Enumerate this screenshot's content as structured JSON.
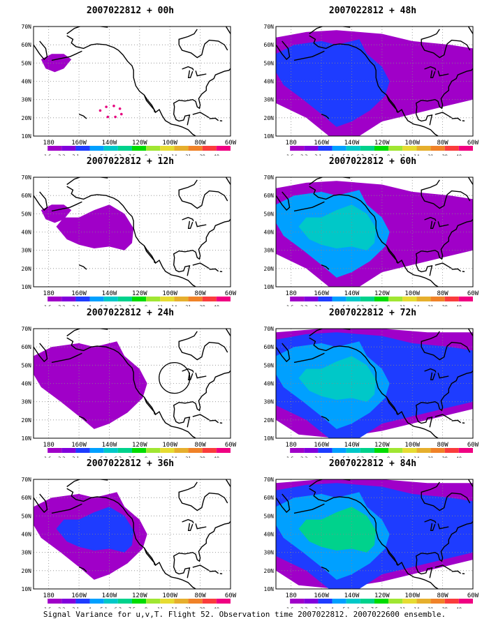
{
  "caption": "Signal Variance for u,v,T. Flight 52. Observation time 2007022812. 2007022600 ensemble.",
  "lat_labels": [
    "70N",
    "60N",
    "50N",
    "40N",
    "30N",
    "20N",
    "10N"
  ],
  "lon_labels": [
    "180",
    "160W",
    "140W",
    "120W",
    "100W",
    "80W",
    "60W"
  ],
  "colorbar": {
    "labels": [
      "1.6",
      "2.2",
      "3.1",
      "4",
      "5.1",
      "6.3",
      "7.5",
      "9",
      "11",
      "14",
      "21",
      "29",
      "40"
    ],
    "colors": [
      "#a000c8",
      "#8200dc",
      "#1e3cff",
      "#00a0ff",
      "#00c8c8",
      "#00d28c",
      "#00dc00",
      "#a0e632",
      "#e6dc32",
      "#e6af2d",
      "#f08228",
      "#fa3c3c",
      "#f00082"
    ]
  },
  "panels": [
    {
      "title": "2007022812 + 00h",
      "level": 0,
      "circle": false,
      "dots": true
    },
    {
      "title": "2007022812 + 48h",
      "level": 4,
      "circle": false,
      "dots": false
    },
    {
      "title": "2007022812 + 12h",
      "level": 1,
      "circle": false,
      "dots": false
    },
    {
      "title": "2007022812 + 60h",
      "level": 5,
      "circle": false,
      "dots": false
    },
    {
      "title": "2007022812 + 24h",
      "level": 2,
      "circle": true,
      "dots": false
    },
    {
      "title": "2007022812 + 72h",
      "level": 6,
      "circle": false,
      "dots": false
    },
    {
      "title": "2007022812 + 36h",
      "level": 3,
      "circle": false,
      "dots": false
    },
    {
      "title": "2007022812 + 84h",
      "level": 7,
      "circle": false,
      "dots": false
    }
  ]
}
